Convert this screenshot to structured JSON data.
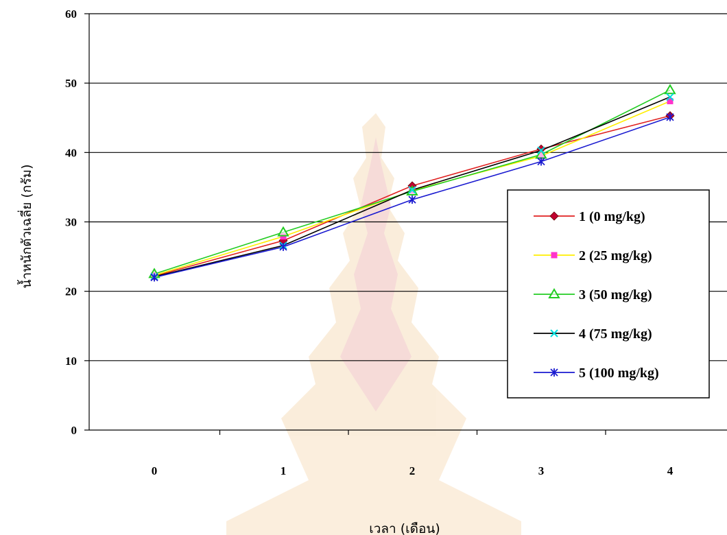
{
  "chart_data": {
    "type": "line",
    "xlabel": "เวลา (เดือน)",
    "ylabel": "น้ำหนักตัวเฉลี่ย (กรัม)",
    "categories": [
      "0",
      "1",
      "2",
      "3",
      "4"
    ],
    "ylim": [
      0,
      60
    ],
    "yticks": [
      0,
      10,
      20,
      30,
      40,
      50,
      60
    ],
    "grid": true,
    "legend_position": "right",
    "series": [
      {
        "name": "1 (0 mg/kg)",
        "color": "#e02020",
        "marker": "diamond",
        "marker_color": "#c00030",
        "values": [
          22.2,
          27.3,
          35.2,
          40.5,
          45.3
        ]
      },
      {
        "name": "2 (25 mg/kg)",
        "color": "#ffee00",
        "marker": "square",
        "marker_color": "#ff33cc",
        "values": [
          22.3,
          27.9,
          34.5,
          39.5,
          47.4
        ]
      },
      {
        "name": "3 (50 mg/kg)",
        "color": "#22cc22",
        "marker": "triangle",
        "marker_color": "#22cc22",
        "values": [
          22.5,
          28.5,
          34.4,
          39.7,
          49.0
        ]
      },
      {
        "name": "4 (75 mg/kg)",
        "color": "#000000",
        "marker": "x",
        "marker_color": "#00dddd",
        "values": [
          22.1,
          26.6,
          34.6,
          40.3,
          48.0
        ]
      },
      {
        "name": "5 (100 mg/kg)",
        "color": "#1a1ad0",
        "marker": "star",
        "marker_color": "#1a1ad0",
        "values": [
          22.0,
          26.4,
          33.2,
          38.7,
          45.1
        ]
      }
    ]
  }
}
